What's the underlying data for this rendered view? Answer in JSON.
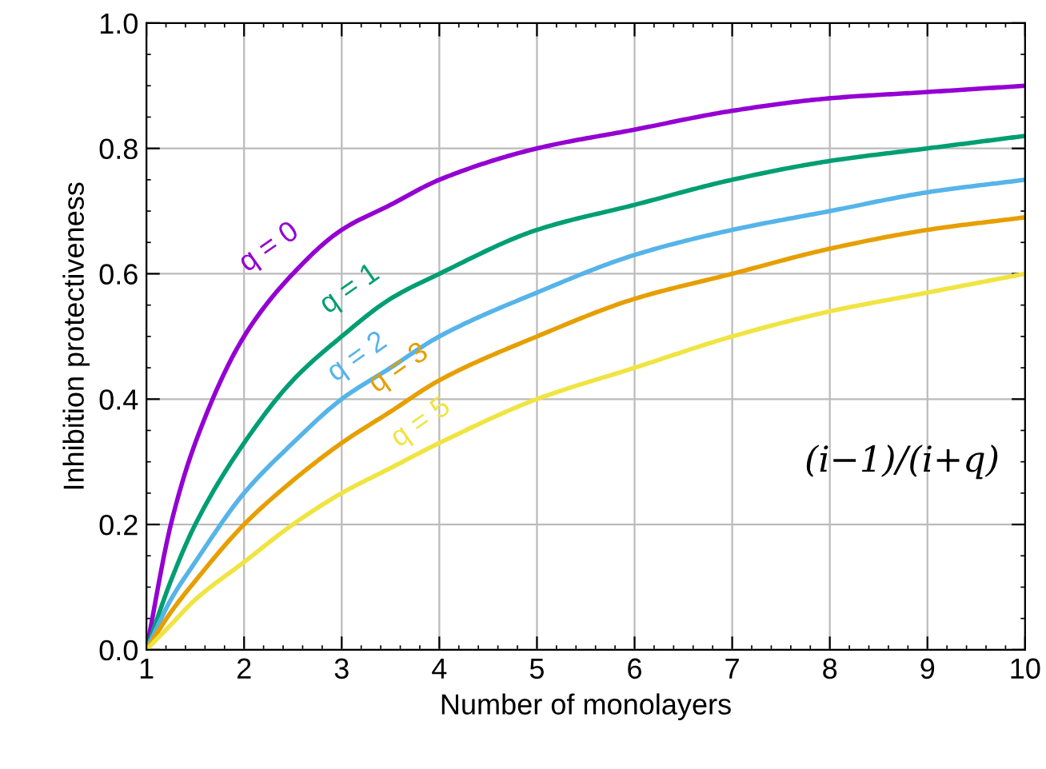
{
  "chart_data": {
    "type": "line",
    "xlabel": "Number of monolayers",
    "ylabel": "Inhibition protectiveness",
    "x": [
      1,
      1.25,
      1.5,
      2,
      2.5,
      3,
      3.5,
      4,
      5,
      6,
      7,
      8,
      9,
      10
    ],
    "series": [
      {
        "name": "q = 0",
        "color": "#9400d3",
        "values": [
          0,
          0.2,
          0.33,
          0.5,
          0.6,
          0.67,
          0.71,
          0.75,
          0.8,
          0.83,
          0.86,
          0.88,
          0.89,
          0.9
        ]
      },
      {
        "name": "q = 1",
        "color": "#009e73",
        "values": [
          0,
          0.11,
          0.2,
          0.33,
          0.43,
          0.5,
          0.56,
          0.6,
          0.67,
          0.71,
          0.75,
          0.78,
          0.8,
          0.82
        ]
      },
      {
        "name": "q = 2",
        "color": "#56b4e9",
        "values": [
          0,
          0.08,
          0.14,
          0.25,
          0.33,
          0.4,
          0.45,
          0.5,
          0.57,
          0.63,
          0.67,
          0.7,
          0.73,
          0.75
        ]
      },
      {
        "name": "q = 3",
        "color": "#e69f00",
        "values": [
          0,
          0.06,
          0.11,
          0.2,
          0.27,
          0.33,
          0.38,
          0.43,
          0.5,
          0.56,
          0.6,
          0.64,
          0.67,
          0.69
        ]
      },
      {
        "name": "q = 5",
        "color": "#f0e442",
        "values": [
          0,
          0.04,
          0.08,
          0.14,
          0.2,
          0.25,
          0.29,
          0.33,
          0.4,
          0.45,
          0.5,
          0.54,
          0.57,
          0.6
        ]
      }
    ],
    "annotations": [
      "(i−1)/(i+q)"
    ],
    "xlim": [
      1,
      10
    ],
    "xticks": [
      1,
      2,
      3,
      4,
      5,
      6,
      7,
      8,
      9,
      10
    ],
    "ylim": [
      0,
      1
    ],
    "yticks": [
      {
        "value": 0,
        "label": "0.0"
      },
      {
        "value": 0.2,
        "label": "0.2"
      },
      {
        "value": 0.4,
        "label": "0.4"
      },
      {
        "value": 0.6,
        "label": "0.6"
      },
      {
        "value": 0.8,
        "label": "0.8"
      },
      {
        "value": 1,
        "label": "1.0"
      }
    ],
    "grid": true,
    "marker": "none",
    "line_style": "solid"
  }
}
